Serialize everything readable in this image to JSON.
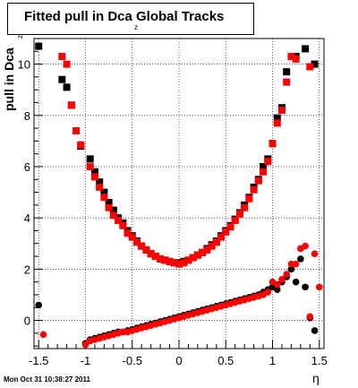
{
  "title": {
    "main": "Fitted pull in Dca Global Tracks",
    "subscript": "z"
  },
  "footer": {
    "timestamp": "Mon Oct 31 10:38:27 2011"
  },
  "chart_data": {
    "type": "scatter",
    "xlabel": "η",
    "ylabel": "pull in Dca",
    "ylabel_subscript": "z",
    "xlim": [
      -1.55,
      1.55
    ],
    "ylim": [
      -1.1,
      11.0
    ],
    "x_ticks": [
      -1.5,
      -1,
      -0.5,
      0,
      0.5,
      1,
      1.5
    ],
    "x_tick_labels": [
      "-1.5",
      "-1",
      "-0.5",
      "0",
      "0.5",
      "1",
      "1.5"
    ],
    "y_ticks": [
      0,
      2,
      4,
      6,
      8,
      10
    ],
    "y_tick_labels": [
      "0",
      "2",
      "4",
      "6",
      "8",
      "10"
    ],
    "grid": true,
    "series": [
      {
        "color": "#000000",
        "marker": "square",
        "points": [
          [
            -1.5,
            10.7
          ],
          [
            -1.25,
            9.4
          ],
          [
            -1.2,
            9.1
          ],
          [
            -1.15,
            8.4
          ],
          [
            -1.05,
            6.8
          ],
          [
            -0.95,
            6.3
          ],
          [
            -0.9,
            5.8
          ],
          [
            -0.85,
            5.4
          ],
          [
            -0.8,
            5.0
          ],
          [
            -0.75,
            4.6
          ],
          [
            -0.7,
            4.3
          ],
          [
            -0.65,
            4.0
          ],
          [
            -0.6,
            3.8
          ],
          [
            -0.55,
            3.5
          ],
          [
            -0.5,
            3.3
          ],
          [
            -0.45,
            3.1
          ],
          [
            -0.4,
            2.9
          ],
          [
            -0.35,
            2.75
          ],
          [
            -0.3,
            2.6
          ],
          [
            -0.25,
            2.5
          ],
          [
            -0.2,
            2.4
          ],
          [
            -0.15,
            2.35
          ],
          [
            -0.1,
            2.3
          ],
          [
            -0.05,
            2.25
          ],
          [
            0.0,
            2.25
          ],
          [
            0.05,
            2.3
          ],
          [
            0.1,
            2.35
          ],
          [
            0.15,
            2.45
          ],
          [
            0.2,
            2.55
          ],
          [
            0.25,
            2.65
          ],
          [
            0.3,
            2.8
          ],
          [
            0.35,
            2.95
          ],
          [
            0.4,
            3.1
          ],
          [
            0.45,
            3.3
          ],
          [
            0.5,
            3.5
          ],
          [
            0.55,
            3.7
          ],
          [
            0.6,
            3.95
          ],
          [
            0.65,
            4.2
          ],
          [
            0.7,
            4.5
          ],
          [
            0.75,
            4.8
          ],
          [
            0.8,
            5.2
          ],
          [
            0.85,
            5.5
          ],
          [
            0.9,
            6.0
          ],
          [
            0.95,
            6.3
          ],
          [
            1.0,
            6.9
          ],
          [
            1.05,
            7.9
          ],
          [
            1.1,
            8.3
          ],
          [
            1.15,
            9.7
          ],
          [
            1.25,
            10.3
          ],
          [
            1.35,
            10.6
          ],
          [
            1.45,
            10.0
          ]
        ]
      },
      {
        "color": "#ff0000",
        "marker": "square",
        "points": [
          [
            -1.25,
            10.3
          ],
          [
            -1.2,
            10.0
          ],
          [
            -1.15,
            8.4
          ],
          [
            -1.1,
            7.4
          ],
          [
            -1.05,
            6.85
          ],
          [
            -0.95,
            6.0
          ],
          [
            -0.9,
            5.6
          ],
          [
            -0.85,
            5.2
          ],
          [
            -0.8,
            4.8
          ],
          [
            -0.75,
            4.4
          ],
          [
            -0.7,
            4.1
          ],
          [
            -0.65,
            3.9
          ],
          [
            -0.6,
            3.7
          ],
          [
            -0.55,
            3.4
          ],
          [
            -0.5,
            3.25
          ],
          [
            -0.45,
            3.05
          ],
          [
            -0.4,
            2.9
          ],
          [
            -0.35,
            2.75
          ],
          [
            -0.3,
            2.6
          ],
          [
            -0.25,
            2.5
          ],
          [
            -0.2,
            2.4
          ],
          [
            -0.15,
            2.35
          ],
          [
            -0.1,
            2.3
          ],
          [
            -0.05,
            2.25
          ],
          [
            0.0,
            2.2
          ],
          [
            0.05,
            2.25
          ],
          [
            0.1,
            2.35
          ],
          [
            0.15,
            2.45
          ],
          [
            0.2,
            2.55
          ],
          [
            0.25,
            2.65
          ],
          [
            0.3,
            2.75
          ],
          [
            0.35,
            2.9
          ],
          [
            0.4,
            3.05
          ],
          [
            0.45,
            3.25
          ],
          [
            0.5,
            3.45
          ],
          [
            0.55,
            3.65
          ],
          [
            0.6,
            3.9
          ],
          [
            0.65,
            4.15
          ],
          [
            0.7,
            4.4
          ],
          [
            0.75,
            4.75
          ],
          [
            0.8,
            5.1
          ],
          [
            0.85,
            5.45
          ],
          [
            0.9,
            5.8
          ],
          [
            0.95,
            6.2
          ],
          [
            1.0,
            6.9
          ],
          [
            1.05,
            7.7
          ],
          [
            1.1,
            8.2
          ],
          [
            1.15,
            9.3
          ],
          [
            1.2,
            10.3
          ],
          [
            1.25,
            10.2
          ],
          [
            1.4,
            9.9
          ]
        ]
      },
      {
        "color": "#000000",
        "marker": "circle",
        "points": [
          [
            -1.5,
            0.6
          ],
          [
            -1.0,
            -0.9
          ],
          [
            -0.95,
            -0.75
          ],
          [
            -0.9,
            -0.7
          ],
          [
            -0.85,
            -0.65
          ],
          [
            -0.8,
            -0.6
          ],
          [
            -0.75,
            -0.55
          ],
          [
            -0.7,
            -0.5
          ],
          [
            -0.65,
            -0.45
          ],
          [
            -0.6,
            -0.45
          ],
          [
            -0.55,
            -0.4
          ],
          [
            -0.5,
            -0.35
          ],
          [
            -0.45,
            -0.3
          ],
          [
            -0.4,
            -0.25
          ],
          [
            -0.35,
            -0.2
          ],
          [
            -0.3,
            -0.15
          ],
          [
            -0.25,
            -0.1
          ],
          [
            -0.2,
            -0.05
          ],
          [
            -0.15,
            0.0
          ],
          [
            -0.1,
            0.05
          ],
          [
            -0.05,
            0.1
          ],
          [
            0.0,
            0.15
          ],
          [
            0.05,
            0.2
          ],
          [
            0.1,
            0.25
          ],
          [
            0.15,
            0.3
          ],
          [
            0.2,
            0.35
          ],
          [
            0.25,
            0.4
          ],
          [
            0.3,
            0.45
          ],
          [
            0.35,
            0.5
          ],
          [
            0.4,
            0.55
          ],
          [
            0.45,
            0.6
          ],
          [
            0.5,
            0.65
          ],
          [
            0.55,
            0.7
          ],
          [
            0.6,
            0.75
          ],
          [
            0.65,
            0.8
          ],
          [
            0.7,
            0.85
          ],
          [
            0.75,
            0.9
          ],
          [
            0.8,
            0.95
          ],
          [
            0.85,
            1.0
          ],
          [
            0.9,
            1.1
          ],
          [
            0.95,
            1.2
          ],
          [
            1.0,
            1.3
          ],
          [
            1.05,
            1.2
          ],
          [
            1.1,
            1.5
          ],
          [
            1.15,
            1.7
          ],
          [
            1.2,
            2.0
          ],
          [
            1.25,
            1.5
          ],
          [
            1.3,
            2.4
          ],
          [
            1.35,
            1.3
          ],
          [
            1.4,
            0.1
          ],
          [
            1.45,
            -0.4
          ]
        ]
      },
      {
        "color": "#ff0000",
        "marker": "circle",
        "points": [
          [
            -1.45,
            -0.55
          ],
          [
            -1.0,
            -0.95
          ],
          [
            -0.95,
            -0.8
          ],
          [
            -0.9,
            -0.75
          ],
          [
            -0.85,
            -0.7
          ],
          [
            -0.8,
            -0.65
          ],
          [
            -0.75,
            -0.6
          ],
          [
            -0.7,
            -0.55
          ],
          [
            -0.65,
            -0.5
          ],
          [
            -0.6,
            -0.45
          ],
          [
            -0.55,
            -0.45
          ],
          [
            -0.5,
            -0.4
          ],
          [
            -0.45,
            -0.35
          ],
          [
            -0.4,
            -0.3
          ],
          [
            -0.35,
            -0.25
          ],
          [
            -0.3,
            -0.2
          ],
          [
            -0.25,
            -0.15
          ],
          [
            -0.2,
            -0.1
          ],
          [
            -0.15,
            -0.05
          ],
          [
            -0.1,
            0.0
          ],
          [
            -0.05,
            0.05
          ],
          [
            0.0,
            0.1
          ],
          [
            0.05,
            0.15
          ],
          [
            0.1,
            0.2
          ],
          [
            0.15,
            0.25
          ],
          [
            0.2,
            0.3
          ],
          [
            0.25,
            0.35
          ],
          [
            0.3,
            0.4
          ],
          [
            0.35,
            0.45
          ],
          [
            0.4,
            0.5
          ],
          [
            0.45,
            0.55
          ],
          [
            0.5,
            0.6
          ],
          [
            0.55,
            0.65
          ],
          [
            0.6,
            0.7
          ],
          [
            0.65,
            0.75
          ],
          [
            0.7,
            0.8
          ],
          [
            0.75,
            0.85
          ],
          [
            0.8,
            0.9
          ],
          [
            0.85,
            0.95
          ],
          [
            0.9,
            1.0
          ],
          [
            0.95,
            1.1
          ],
          [
            1.0,
            1.5
          ],
          [
            1.05,
            1.4
          ],
          [
            1.1,
            1.6
          ],
          [
            1.15,
            1.8
          ],
          [
            1.2,
            2.2
          ],
          [
            1.25,
            2.2
          ],
          [
            1.3,
            2.8
          ],
          [
            1.35,
            2.9
          ],
          [
            1.4,
            0.15
          ],
          [
            1.45,
            2.6
          ],
          [
            1.5,
            1.3
          ]
        ]
      }
    ]
  }
}
